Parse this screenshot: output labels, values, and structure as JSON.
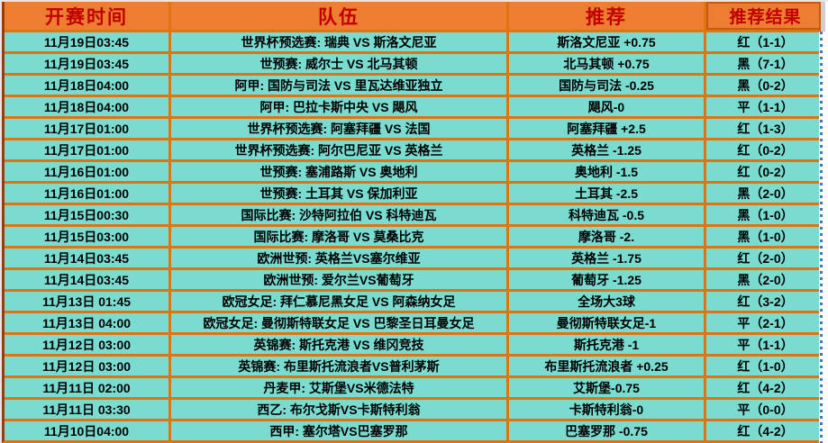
{
  "table": {
    "headers": [
      "开赛时间",
      "队伍",
      "推荐",
      "推荐结果"
    ],
    "rows": [
      {
        "time": "11月19日03:45",
        "teams": "世界杯预选赛: 瑞典 VS 斯洛文尼亚",
        "tip": "斯洛文尼亚 +0.75",
        "result": "红（1-1）"
      },
      {
        "time": "11月19日03:45",
        "teams": "世预赛: 威尔士 VS 北马其顿",
        "tip": "北马其顿 +0.75",
        "result": "黑（7-1）"
      },
      {
        "time": "11月18日04:00",
        "teams": "阿甲: 国防与司法 VS 里瓦达维亚独立",
        "tip": "国防与司法 -0.25",
        "result": "黑（0-2）"
      },
      {
        "time": "11月18日04:00",
        "teams": "阿甲: 巴拉卡斯中央 VS 飓风",
        "tip": "飓风-0",
        "result": "平（1-1）"
      },
      {
        "time": "11月17日01:00",
        "teams": "世界杯预选赛: 阿塞拜疆 VS 法国",
        "tip": "阿塞拜疆 +2.5",
        "result": "红（1-3）"
      },
      {
        "time": "11月17日01:00",
        "teams": "世界杯预选赛: 阿尔巴尼亚 VS 英格兰",
        "tip": "英格兰 -1.25",
        "result": "红（0-2）"
      },
      {
        "time": "11月16日01:00",
        "teams": "世预赛: 塞浦路斯 VS 奥地利",
        "tip": "奥地利 -1.5",
        "result": "红（0-2）"
      },
      {
        "time": "11月16日01:00",
        "teams": "世预赛: 土耳其 VS 保加利亚",
        "tip": "土耳其 -2.5",
        "result": "黑（2-0）"
      },
      {
        "time": "11月15日00:30",
        "teams": "国际比赛: 沙特阿拉伯 VS 科特迪瓦",
        "tip": "科特迪瓦 -0.5",
        "result": "黑（1-0）"
      },
      {
        "time": "11月15日03:00",
        "teams": "国际比赛: 摩洛哥 VS 莫桑比克",
        "tip": "摩洛哥 -2.",
        "result": "黑（1-0）"
      },
      {
        "time": "11月14日03:45",
        "teams": "欧洲世预: 英格兰VS塞尔维亚",
        "tip": "英格兰 -1.75",
        "result": "红（2-0）"
      },
      {
        "time": "11月14日03:45",
        "teams": "欧洲世预: 爱尔兰VS葡萄牙",
        "tip": "葡萄牙 -1.25",
        "result": "黑（2-0）"
      },
      {
        "time": "11月13日 01:45",
        "teams": "欧冠女足: 拜仁慕尼黑女足 VS 阿森纳女足",
        "tip": "全场大3球",
        "result": "红（3-2）"
      },
      {
        "time": "11月13日 04:00",
        "teams": "欧冠女足: 曼彻斯特联女足 VS 巴黎圣日耳曼女足",
        "tip": "曼彻斯特联女足-1",
        "result": "平（2-1）"
      },
      {
        "time": "11月12日 03:00",
        "teams": "英锦赛: 斯托克港 VS 维冈竞技",
        "tip": "斯托克港 -1",
        "result": "平（1-1）"
      },
      {
        "time": "11月12日 03:00",
        "teams": "英锦赛: 布里斯托流浪者VS普利茅斯",
        "tip": "布里斯托流浪者 +0.25",
        "result": "红（1-0）"
      },
      {
        "time": "11月11日 02:00",
        "teams": "丹麦甲: 艾斯堡VS米德法特",
        "tip": "艾斯堡-0.75",
        "result": "红（4-2）"
      },
      {
        "time": "11月11日 03:30",
        "teams": "西乙: 布尔戈斯VS卡斯特利翁",
        "tip": "卡斯特利翁-0",
        "result": "平（0-0）"
      },
      {
        "time": "11月10日04:00",
        "teams": "西甲: 塞尔塔VS巴塞罗那",
        "tip": "巴塞罗那 -0.75",
        "result": "红（4-2）"
      }
    ]
  },
  "colors": {
    "header_bg": "#ED7D31",
    "header_text": "#C00000",
    "header_border": "#C55A11",
    "row_bg": "#7ADBD1",
    "grid_line": "#E0740E",
    "left_border": "#9C3C0C",
    "edge_gray": "#E7E6E6",
    "edge_gray2": "#D0CECE",
    "page_break_dash": "#4472C4",
    "cell_text": "#000000"
  }
}
